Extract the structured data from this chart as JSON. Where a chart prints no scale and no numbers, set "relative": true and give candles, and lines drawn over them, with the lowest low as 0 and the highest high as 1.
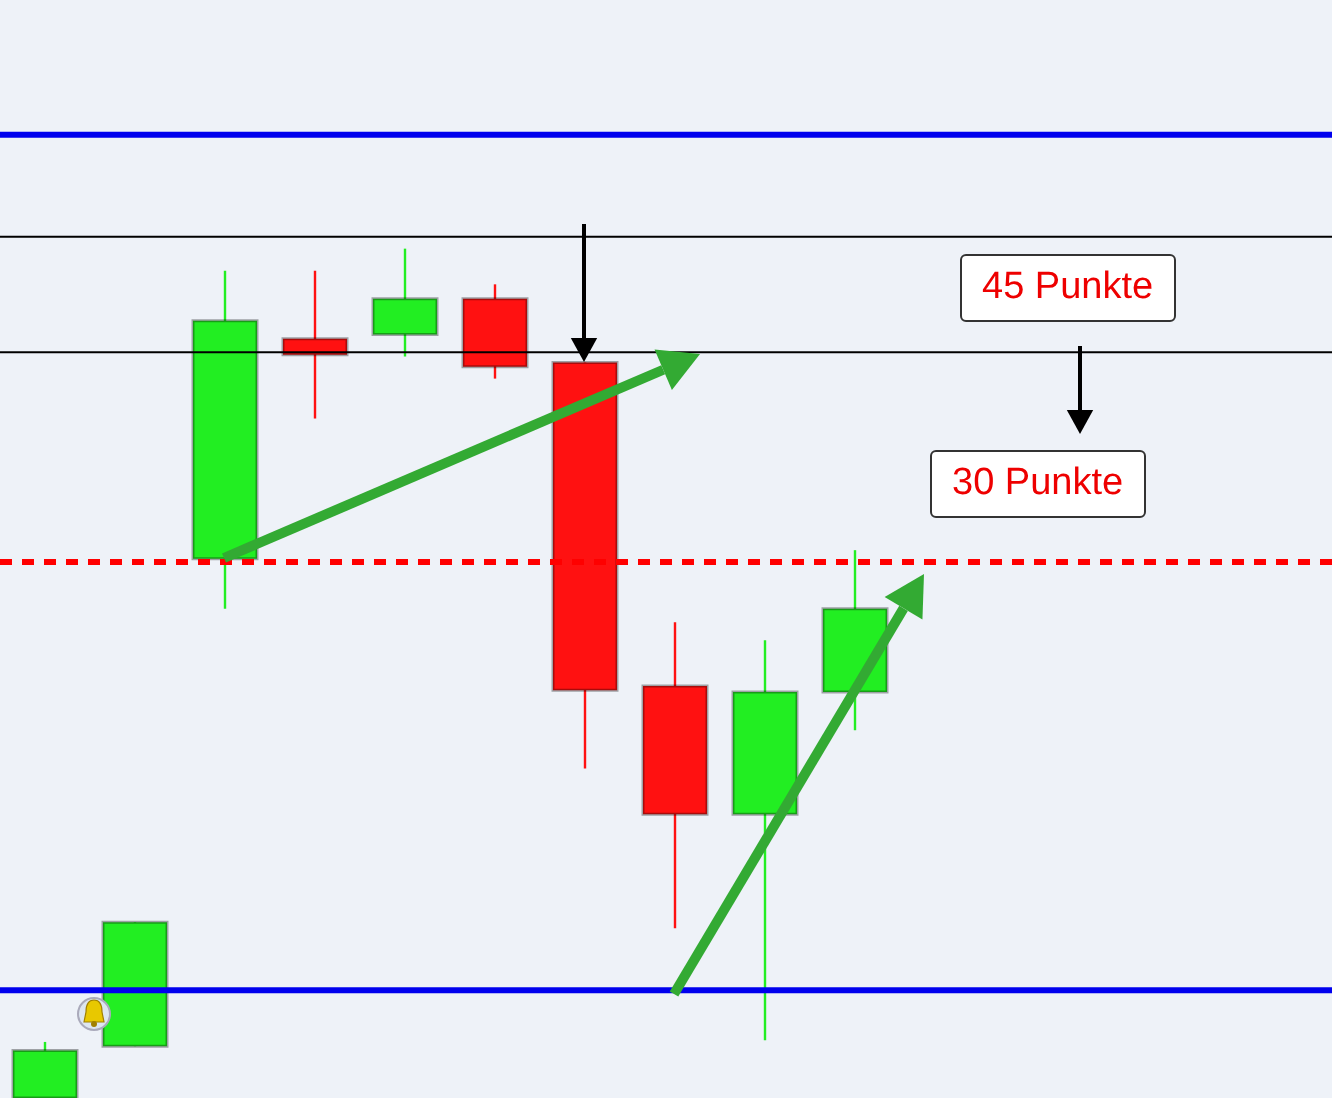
{
  "chart_data": {
    "type": "candlestick",
    "relative": true,
    "categories": [
      null,
      null,
      null,
      null,
      null,
      null,
      null,
      null,
      null,
      null
    ],
    "ohlc": [
      [
        0,
        0.066,
        0,
        0.056
      ],
      [
        0.061,
        0.207,
        0.061,
        0.207
      ],
      [
        0.635,
        0.974,
        0.576,
        0.915
      ],
      [
        0.894,
        0.974,
        0.8,
        0.875
      ],
      [
        0.899,
        1,
        0.873,
        0.941
      ],
      [
        0.941,
        0.958,
        0.847,
        0.861
      ],
      [
        0.866,
        0.866,
        0.388,
        0.48
      ],
      [
        0.485,
        0.56,
        0.2,
        0.334
      ],
      [
        0.334,
        0.539,
        0.068,
        0.478
      ],
      [
        0.478,
        0.645,
        0.433,
        0.576
      ]
    ],
    "colors": [
      "#22ee22",
      "#22ee22",
      "#22ee22",
      "#ff1111",
      "#22ee22",
      "#ff1111",
      "#ff1111",
      "#ff1111",
      "#22ee22",
      "#22ee22"
    ],
    "ref_lines": [
      {
        "axis": "y",
        "value": 1.134,
        "color": "#0000ee",
        "line_style": "solid"
      },
      {
        "axis": "y",
        "value": 1.014,
        "color": "#000000",
        "line_style": "solid"
      },
      {
        "axis": "y",
        "value": 0.878,
        "color": "#000000",
        "line_style": "solid"
      },
      {
        "axis": "y",
        "value": 0.631,
        "color": "#ff0000",
        "line_style": "dashed"
      },
      {
        "axis": "y",
        "value": 0.127,
        "color": "#0000ee",
        "line_style": "solid"
      }
    ],
    "annotations": [
      "45 Punkte",
      "30 Punkte"
    ]
  }
}
